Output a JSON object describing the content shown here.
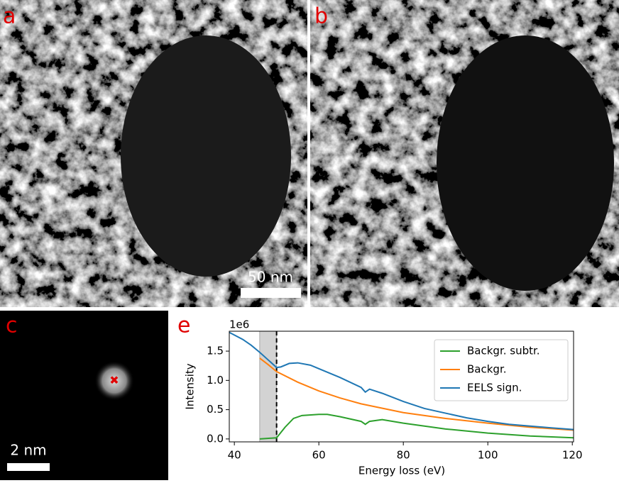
{
  "panels": {
    "a": "a",
    "b": "b",
    "c": "c",
    "e": "e"
  },
  "scale_bars": {
    "a": "50 nm",
    "c": "2 nm"
  },
  "chart_data": {
    "type": "line",
    "offset_text": "1e6",
    "ylabel": "Intensity",
    "xlabel": "Energy loss (eV)",
    "xlim": [
      38.8,
      120.3
    ],
    "ylim": [
      -0.05,
      1.84
    ],
    "xticks": [
      40,
      60,
      80,
      100,
      120
    ],
    "yticks": [
      {
        "value": 0,
        "label": "0.0"
      },
      {
        "value": 0.5,
        "label": "0.5"
      },
      {
        "value": 1,
        "label": "1.0"
      },
      {
        "value": 1.5,
        "label": "1.5"
      }
    ],
    "shade": [
      46,
      50
    ],
    "vline": 50,
    "legend": "upper right",
    "series": [
      {
        "name": "Backgr. subtr.",
        "color": "#2ca02c",
        "x": [
          46,
          50,
          52,
          54,
          56,
          60,
          62,
          65,
          70,
          71,
          72,
          75,
          80,
          90,
          100,
          110,
          120.3
        ],
        "values": [
          0,
          0.02,
          0.2,
          0.35,
          0.4,
          0.42,
          0.42,
          0.38,
          0.3,
          0.25,
          0.3,
          0.33,
          0.27,
          0.17,
          0.1,
          0.05,
          0.02
        ]
      },
      {
        "name": "Backgr.",
        "color": "#ff7f0e",
        "x": [
          46,
          48,
          50,
          55,
          60,
          65,
          70,
          80,
          90,
          100,
          110,
          120.3
        ],
        "values": [
          1.38,
          1.27,
          1.15,
          0.97,
          0.82,
          0.7,
          0.6,
          0.45,
          0.35,
          0.27,
          0.2,
          0.15
        ]
      },
      {
        "name": "EELS sign.",
        "color": "#1f77b4",
        "x": [
          38.8,
          42,
          44,
          46,
          48,
          50,
          51,
          53,
          55,
          58,
          60,
          65,
          70,
          71,
          72,
          75,
          80,
          85,
          90,
          95,
          100,
          105,
          110,
          115,
          120.3
        ],
        "values": [
          1.82,
          1.7,
          1.6,
          1.48,
          1.35,
          1.22,
          1.23,
          1.29,
          1.3,
          1.26,
          1.2,
          1.05,
          0.88,
          0.8,
          0.85,
          0.78,
          0.64,
          0.52,
          0.44,
          0.36,
          0.3,
          0.25,
          0.22,
          0.19,
          0.16
        ]
      }
    ]
  }
}
